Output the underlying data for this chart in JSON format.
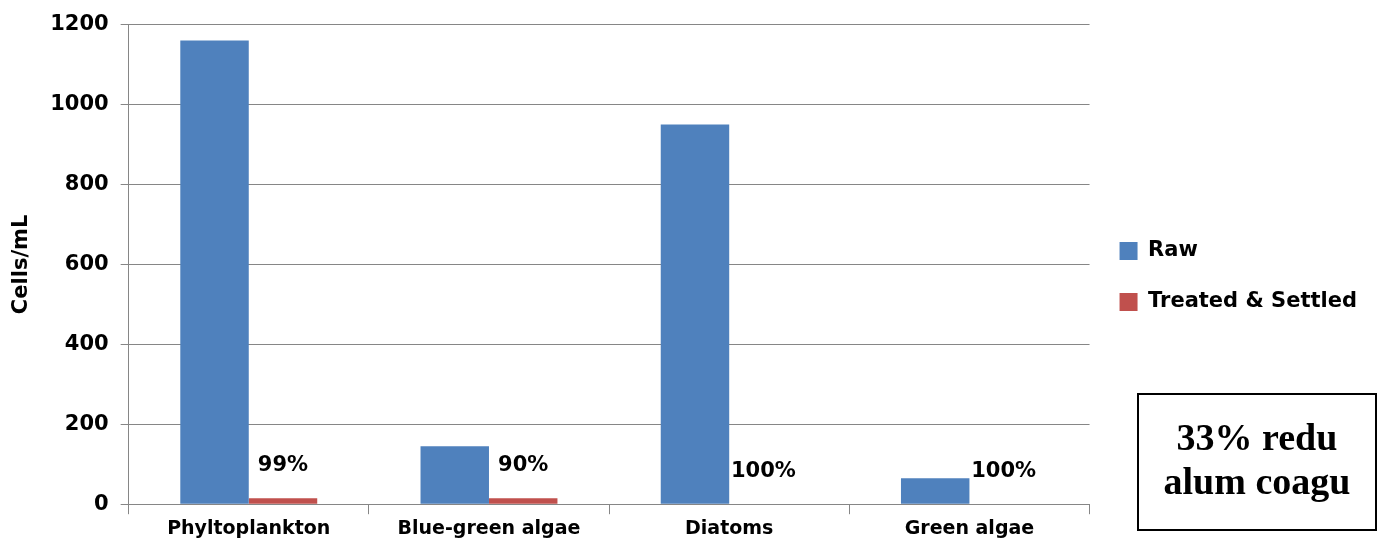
{
  "chart_data": {
    "type": "bar",
    "categories": [
      "Phyltoplankton",
      "Blue-green algae",
      "Diatoms",
      "Green algae"
    ],
    "ylabel": "Cells/mL",
    "series": [
      {
        "name": "Raw",
        "color": "#4f81bd",
        "values": [
          1160,
          145,
          950,
          65
        ]
      },
      {
        "name": "Treated & Settled",
        "color": "#c0504d",
        "values": [
          15,
          15,
          0,
          0
        ]
      }
    ],
    "ylim": [
      0,
      1200
    ],
    "yticks": [
      0,
      200,
      400,
      600,
      800,
      1000,
      1200
    ],
    "grid": "y",
    "legend": "right",
    "annotations": [
      {
        "text": "99%",
        "x": "Phyltoplankton",
        "y": 15
      },
      {
        "text": "90%",
        "x": "Blue-green algae",
        "y": 15
      },
      {
        "text": "100%",
        "x": "Diatoms",
        "y": 0
      },
      {
        "text": "100%",
        "x": "Green algae",
        "y": 0
      },
      "33% redu\nalum coagu"
    ]
  }
}
